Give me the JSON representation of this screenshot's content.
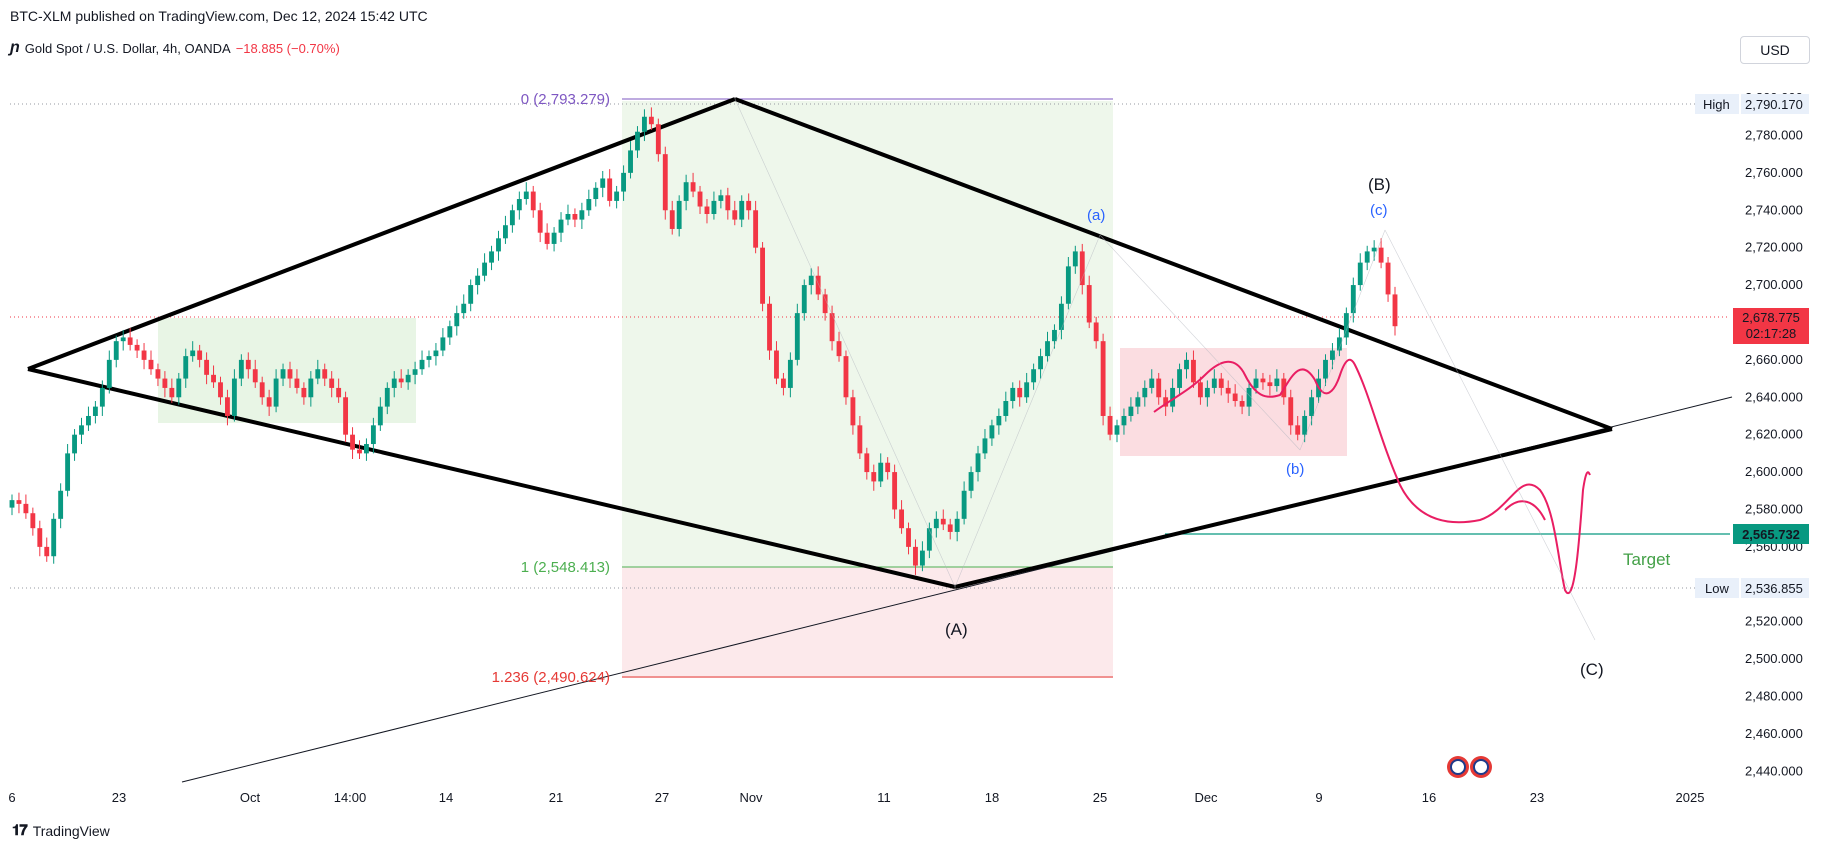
{
  "header": {
    "published": "BTC-XLM published on TradingView.com, Dec 12, 2024 15:42 UTC",
    "symbol": "Gold Spot / U.S. Dollar, 4h, OANDA",
    "change": "−18.885 (−0.70%)",
    "currency": "USD"
  },
  "footer": {
    "brand": "TradingView"
  },
  "colors": {
    "bull": "#089981",
    "bear": "#f23645",
    "green_zone": "#e3f2de",
    "red_zone": "#fbe0e3",
    "fib_purple": "#7e57c2",
    "fib_green": "#4caf50",
    "fib_red": "#e53935",
    "target_line": "#089981",
    "hand_line": "#e91e63",
    "wave_blue": "#2962ff"
  },
  "chart_data": {
    "type": "candlestick",
    "title": "Gold Spot / U.S. Dollar, 4h, OANDA",
    "y_axis": {
      "ticks": [
        2440,
        2460,
        2480,
        2500,
        2520,
        2540,
        2560,
        2580,
        2600,
        2620,
        2640,
        2660,
        2680,
        2700,
        2720,
        2740,
        2760,
        2780,
        2800
      ],
      "tick_labels": [
        "2,440.000",
        "2,460.000",
        "2,480.000",
        "2,500.000",
        "2,520.000",
        "2,540.000",
        "2,560.000",
        "2,580.000",
        "2,600.000",
        "2,620.000",
        "2,640.000",
        "2,660.000",
        "2,680.000",
        "2,700.000",
        "2,720.000",
        "2,740.000",
        "2,760.000",
        "2,780.000",
        "2,800.000"
      ],
      "range": [
        2430,
        2815
      ]
    },
    "x_axis": {
      "tick_labels": [
        "6",
        "23",
        "Oct",
        "14:00",
        "14",
        "21",
        "27",
        "Nov",
        "11",
        "18",
        "25",
        "Dec",
        "9",
        "16",
        "23",
        "2025"
      ]
    },
    "price_labels": {
      "high": {
        "label": "High",
        "value": "2,790.170"
      },
      "low": {
        "label": "Low",
        "value": "2,536.855"
      },
      "current": {
        "value": "2,678.775",
        "countdown": "02:17:28"
      },
      "target": {
        "value": "2,565.732"
      }
    },
    "fib_levels": [
      {
        "label": "0 (2,793.279)",
        "price": 2793.279
      },
      {
        "label": "1 (2,548.413)",
        "price": 2548.413
      },
      {
        "label": "1.236 (2,490.624)",
        "price": 2490.624
      }
    ],
    "annotations": {
      "wave_A": "(A)",
      "wave_B": "(B)",
      "wave_C": "(C)",
      "wave_a": "(a)",
      "wave_b": "(b)",
      "wave_c": "(c)",
      "target": "Target"
    },
    "closes": [
      2585,
      2583,
      2578,
      2570,
      2560,
      2555,
      2575,
      2590,
      2610,
      2620,
      2625,
      2630,
      2635,
      2645,
      2660,
      2670,
      2672,
      2668,
      2665,
      2660,
      2655,
      2650,
      2645,
      2640,
      2650,
      2662,
      2665,
      2660,
      2652,
      2648,
      2640,
      2630,
      2650,
      2660,
      2655,
      2648,
      2640,
      2635,
      2650,
      2655,
      2650,
      2645,
      2640,
      2650,
      2655,
      2650,
      2645,
      2640,
      2620,
      2612,
      2610,
      2615,
      2625,
      2635,
      2645,
      2650,
      2648,
      2652,
      2655,
      2660,
      2662,
      2665,
      2672,
      2678,
      2685,
      2690,
      2700,
      2705,
      2712,
      2718,
      2725,
      2732,
      2740,
      2746,
      2750,
      2740,
      2728,
      2722,
      2728,
      2735,
      2738,
      2735,
      2740,
      2746,
      2752,
      2757,
      2745,
      2750,
      2760,
      2772,
      2782,
      2790,
      2786,
      2770,
      2740,
      2730,
      2745,
      2755,
      2750,
      2742,
      2738,
      2745,
      2748,
      2740,
      2735,
      2745,
      2740,
      2720,
      2690,
      2665,
      2650,
      2645,
      2660,
      2685,
      2700,
      2705,
      2695,
      2685,
      2670,
      2662,
      2640,
      2625,
      2610,
      2600,
      2595,
      2605,
      2600,
      2580,
      2570,
      2560,
      2550,
      2558,
      2570,
      2575,
      2572,
      2568,
      2575,
      2590,
      2600,
      2610,
      2618,
      2625,
      2630,
      2638,
      2645,
      2640,
      2648,
      2655,
      2662,
      2670,
      2676,
      2690,
      2710,
      2718,
      2700,
      2680,
      2670,
      2630,
      2620,
      2625,
      2630,
      2635,
      2640,
      2645,
      2650,
      2640,
      2635,
      2645,
      2655,
      2660,
      2648,
      2640,
      2645,
      2650,
      2645,
      2642,
      2638,
      2635,
      2645,
      2650,
      2648,
      2646,
      2650,
      2640,
      2625,
      2620,
      2630,
      2640,
      2650,
      2660,
      2665,
      2672,
      2685,
      2700,
      2712,
      2718,
      2720,
      2712,
      2695,
      2678
    ]
  }
}
